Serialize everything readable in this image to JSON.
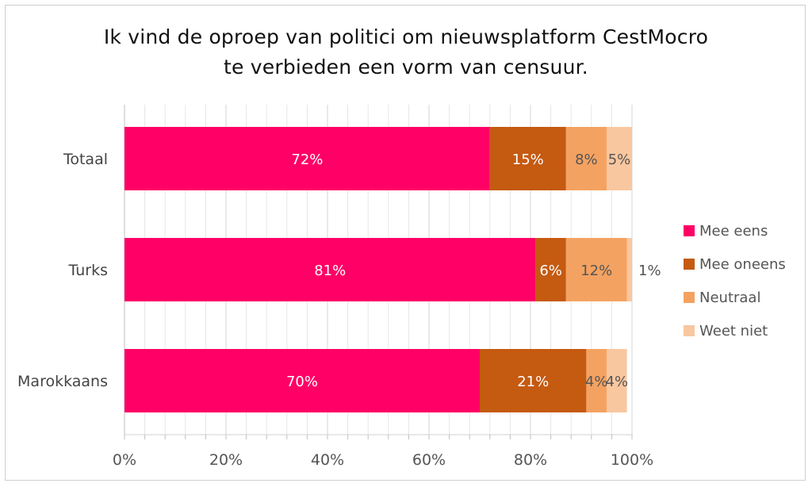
{
  "chart_data": {
    "type": "bar",
    "orientation": "horizontal",
    "stacked": true,
    "title_lines": [
      "Ik vind de oproep van politici om nieuwsplatform CestMocro",
      "te verbieden een vorm van censuur."
    ],
    "categories": [
      "Totaal",
      "Turks",
      "Marokkaans"
    ],
    "series": [
      {
        "name": "Mee eens",
        "color": "#FF0066",
        "values": [
          72,
          81,
          70
        ],
        "labels": [
          "72%",
          "81%",
          "70%"
        ]
      },
      {
        "name": "Mee oneens",
        "color": "#C55A11",
        "values": [
          15,
          6,
          21
        ],
        "labels": [
          "15%",
          "6%",
          "21%"
        ]
      },
      {
        "name": "Neutraal",
        "color": "#F4A261",
        "values": [
          8,
          12,
          4
        ],
        "labels": [
          "8%",
          "12%",
          "4%"
        ]
      },
      {
        "name": "Weet niet",
        "color": "#F9C79F",
        "values": [
          5,
          1,
          4
        ],
        "labels": [
          "5%",
          "1%",
          "4%"
        ]
      }
    ],
    "xlim": [
      0,
      100
    ],
    "x_ticks": [
      "0%",
      "20%",
      "40%",
      "60%",
      "80%",
      "100%"
    ],
    "grid": true,
    "legend_position": "right"
  }
}
